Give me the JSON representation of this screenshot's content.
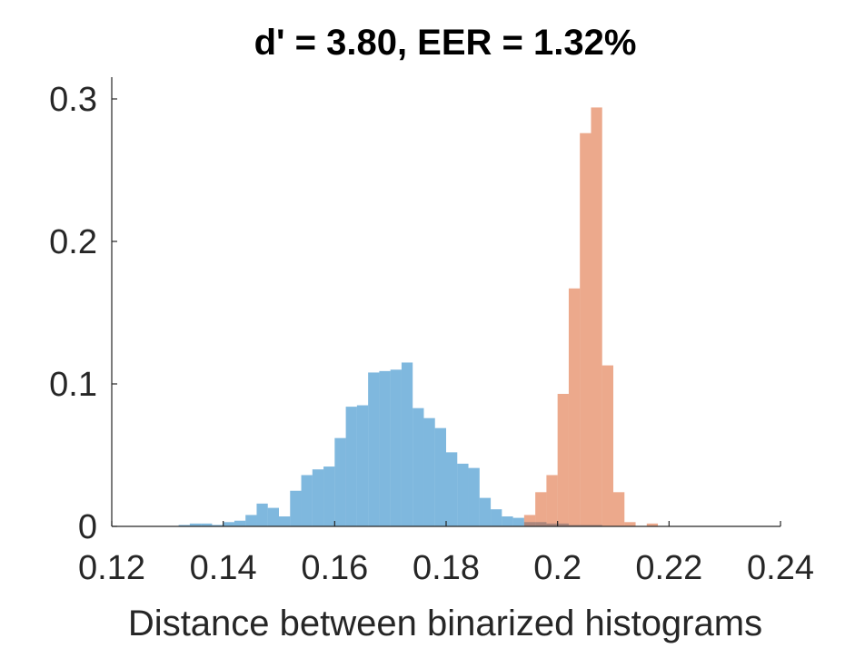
{
  "chart_data": {
    "type": "bar",
    "title": "d' = 3.80, EER = 1.32%",
    "xlabel": "Distance between binarized histograms",
    "ylabel": "",
    "xlim": [
      0.12,
      0.24
    ],
    "ylim": [
      0,
      0.3
    ],
    "xticks": [
      "0.12",
      "0.14",
      "0.16",
      "0.18",
      "0.2",
      "0.22",
      "0.24"
    ],
    "yticks": [
      "0",
      "0.1",
      "0.2",
      "0.3"
    ],
    "bin_width": 0.002,
    "grid": false,
    "series": [
      {
        "color": "#0072BD",
        "opacity": 0.5,
        "x": [
          0.132,
          0.134,
          0.136,
          0.138,
          0.14,
          0.142,
          0.144,
          0.146,
          0.148,
          0.15,
          0.152,
          0.154,
          0.156,
          0.158,
          0.16,
          0.162,
          0.164,
          0.166,
          0.168,
          0.17,
          0.172,
          0.174,
          0.176,
          0.178,
          0.18,
          0.182,
          0.184,
          0.186,
          0.188,
          0.19,
          0.192,
          0.194,
          0.196,
          0.198,
          0.2,
          0.202,
          0.204,
          0.206
        ],
        "values": [
          0.001,
          0.002,
          0.002,
          0.001,
          0.003,
          0.004,
          0.008,
          0.016,
          0.013,
          0.007,
          0.025,
          0.036,
          0.04,
          0.042,
          0.062,
          0.084,
          0.085,
          0.108,
          0.109,
          0.11,
          0.115,
          0.083,
          0.076,
          0.069,
          0.052,
          0.044,
          0.041,
          0.02,
          0.012,
          0.007,
          0.006,
          0.003,
          0.003,
          0.002,
          0.002,
          0.001,
          0.001,
          0.001
        ]
      },
      {
        "color": "#D95319",
        "opacity": 0.5,
        "x": [
          0.194,
          0.196,
          0.198,
          0.2,
          0.202,
          0.204,
          0.206,
          0.208,
          0.21,
          0.212,
          0.216
        ],
        "values": [
          0.008,
          0.024,
          0.036,
          0.093,
          0.167,
          0.276,
          0.294,
          0.113,
          0.024,
          0.003,
          0.002
        ]
      }
    ]
  }
}
